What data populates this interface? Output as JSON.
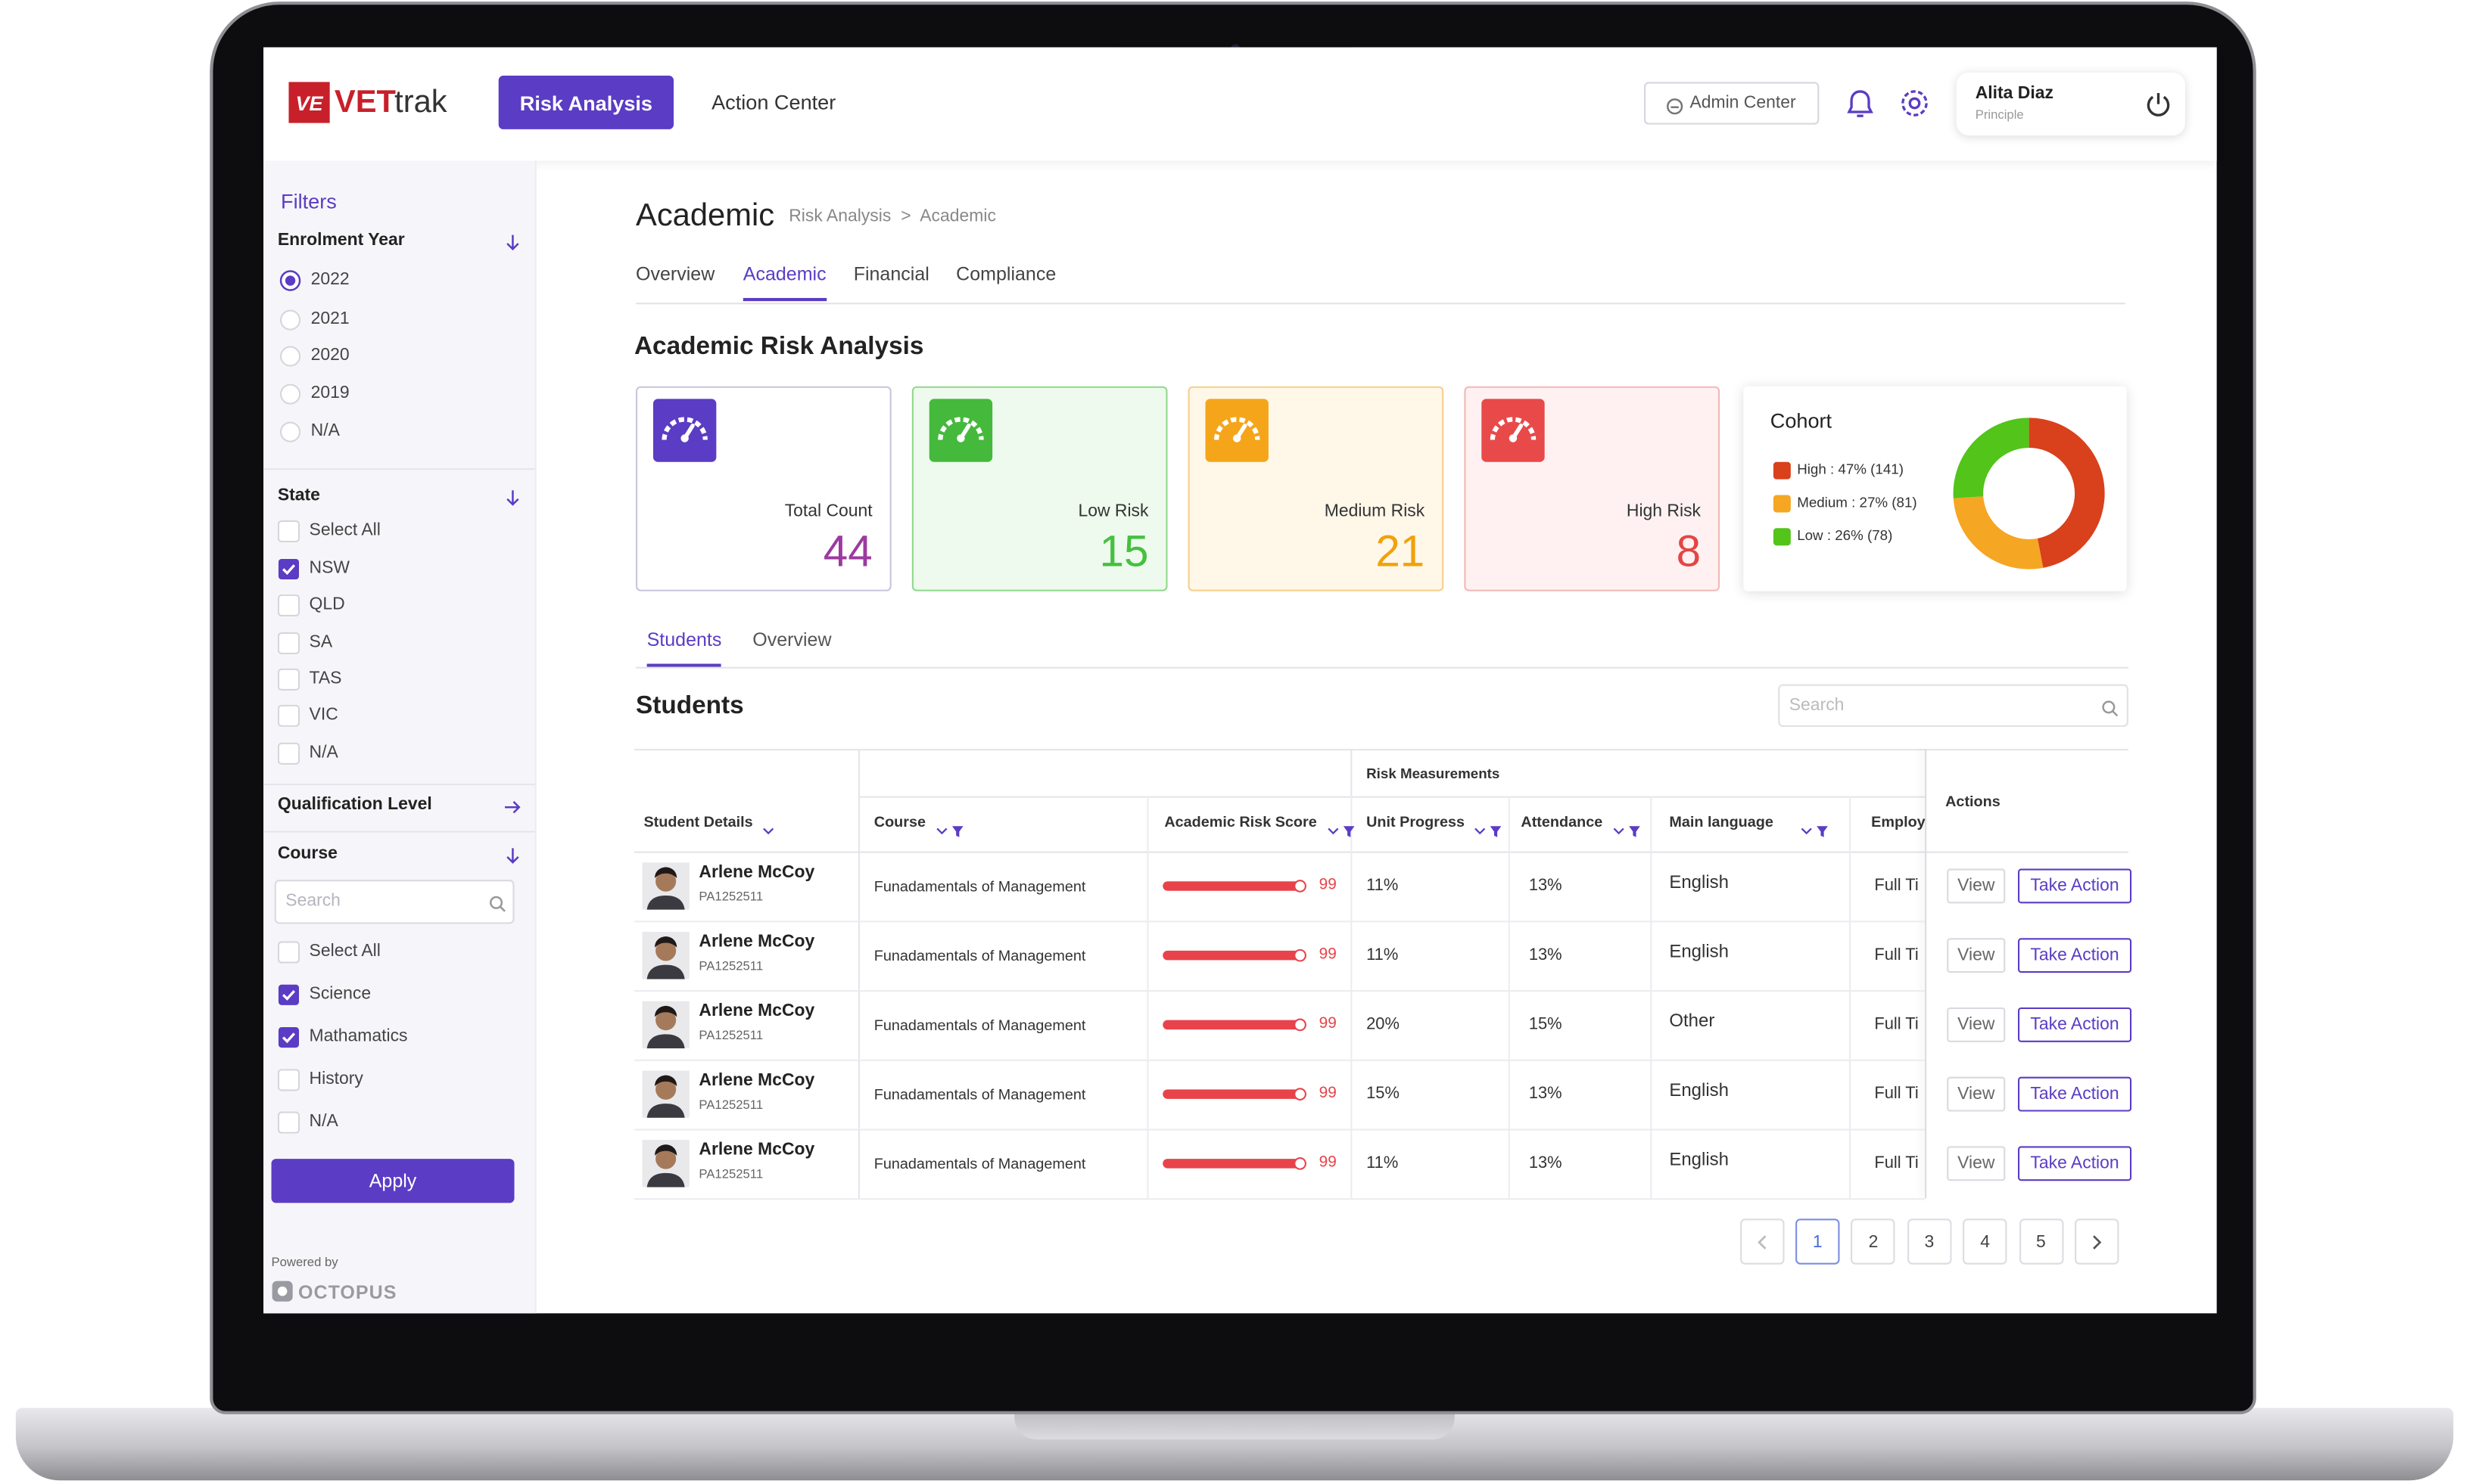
{
  "header": {
    "logo_mark": "VE",
    "logo_bold": "VET",
    "logo_light": "trak",
    "nav": [
      "Risk Analysis",
      "Action Center"
    ],
    "admin": "Admin Center",
    "user": {
      "name": "Alita Diaz",
      "role": "Principle"
    }
  },
  "filters": {
    "title": "Filters",
    "groups": [
      {
        "title": "Enrolment Year",
        "kind": "radio",
        "expanded": true,
        "options": [
          {
            "label": "2022",
            "checked": true
          },
          {
            "label": "2021",
            "checked": false
          },
          {
            "label": "2020",
            "checked": false
          },
          {
            "label": "2019",
            "checked": false
          },
          {
            "label": "N/A",
            "checked": false
          }
        ]
      },
      {
        "title": "State",
        "kind": "checkbox",
        "expanded": true,
        "options": [
          {
            "label": "Select All",
            "checked": false
          },
          {
            "label": "NSW",
            "checked": true
          },
          {
            "label": "QLD",
            "checked": false
          },
          {
            "label": "SA",
            "checked": false
          },
          {
            "label": "TAS",
            "checked": false
          },
          {
            "label": "VIC",
            "checked": false
          },
          {
            "label": "N/A",
            "checked": false
          }
        ]
      },
      {
        "title": "Qualification Level",
        "kind": "checkbox",
        "expanded": false,
        "options": []
      },
      {
        "title": "Course",
        "kind": "checkbox",
        "expanded": true,
        "search": "Search",
        "options": [
          {
            "label": "Select All",
            "checked": false
          },
          {
            "label": "Science",
            "checked": true
          },
          {
            "label": "Mathamatics",
            "checked": true
          },
          {
            "label": "History",
            "checked": false
          },
          {
            "label": "N/A",
            "checked": false
          }
        ]
      }
    ],
    "apply": "Apply",
    "powered_by": "Powered by",
    "brand": "OCTOPUS"
  },
  "main": {
    "title": "Academic",
    "breadcrumb": [
      "Risk Analysis",
      "Academic"
    ],
    "breadcrumb_separator": ">",
    "tabs": [
      {
        "label": "Overview",
        "active": false
      },
      {
        "label": "Academic",
        "active": true
      },
      {
        "label": "Financial",
        "active": false
      },
      {
        "label": "Compliance",
        "active": false
      }
    ],
    "section_title": "Academic Risk Analysis",
    "cards": [
      {
        "label": "Total Count",
        "value": 44,
        "color": "#9c3aa0",
        "icon_color": "#5b3cc4",
        "border": "#c9c4dc",
        "bg": "#ffffff"
      },
      {
        "label": "Low Risk",
        "value": 15,
        "color": "#45c040",
        "icon_color": "#45b93c",
        "border": "#8fd88a",
        "bg": "#eefaed"
      },
      {
        "label": "Medium Risk",
        "value": 21,
        "color": "#f0a20c",
        "icon_color": "#f5a51a",
        "border": "#f5cf8c",
        "bg": "#fff7e8"
      },
      {
        "label": "High Risk",
        "value": 8,
        "color": "#e54545",
        "icon_color": "#e84a4a",
        "border": "#f2b7b7",
        "bg": "#fff1f1"
      }
    ],
    "cohort": {
      "title": "Cohort",
      "segments": [
        {
          "label": "High : 47% (141)",
          "value": 47,
          "color": "#d9401c"
        },
        {
          "label": "Medium : 27% (81)",
          "value": 27,
          "color": "#f5a623"
        },
        {
          "label": "Low : 26% (78)",
          "value": 26,
          "color": "#52c41a"
        }
      ]
    }
  },
  "students": {
    "tabs": [
      {
        "label": "Students",
        "active": true
      },
      {
        "label": "Overview",
        "active": false
      }
    ],
    "title": "Students",
    "search": "Search",
    "group_header": "Risk Measurements",
    "columns": [
      "Student Details",
      "Course",
      "Academic Risk Score",
      "Unit Progress",
      "Attendance",
      "Main language",
      "Employ",
      "Actions"
    ],
    "rows": [
      {
        "name": "Arlene McCoy",
        "id": "PA1252511",
        "course": "Funadamentals of Management",
        "score": 99,
        "unit_progress": "11%",
        "attendance": "13%",
        "language": "English",
        "employment": "Full Ti",
        "view": "View",
        "action": "Take Action"
      },
      {
        "name": "Arlene McCoy",
        "id": "PA1252511",
        "course": "Funadamentals of Management",
        "score": 99,
        "unit_progress": "11%",
        "attendance": "13%",
        "language": "English",
        "employment": "Full Ti",
        "view": "View",
        "action": "Take Action"
      },
      {
        "name": "Arlene McCoy",
        "id": "PA1252511",
        "course": "Funadamentals of Management",
        "score": 99,
        "unit_progress": "20%",
        "attendance": "15%",
        "language": "Other",
        "employment": "Full Ti",
        "view": "View",
        "action": "Take Action"
      },
      {
        "name": "Arlene McCoy",
        "id": "PA1252511",
        "course": "Funadamentals of Management",
        "score": 99,
        "unit_progress": "15%",
        "attendance": "13%",
        "language": "English",
        "employment": "Full Ti",
        "view": "View",
        "action": "Take Action"
      },
      {
        "name": "Arlene McCoy",
        "id": "PA1252511",
        "course": "Funadamentals of Management",
        "score": 99,
        "unit_progress": "11%",
        "attendance": "13%",
        "language": "English",
        "employment": "Full Ti",
        "view": "View",
        "action": "Take Action"
      }
    ],
    "pages": [
      {
        "label": "1",
        "active": true
      },
      {
        "label": "2",
        "active": false
      },
      {
        "label": "3",
        "active": false
      },
      {
        "label": "4",
        "active": false
      },
      {
        "label": "5",
        "active": false
      }
    ]
  }
}
